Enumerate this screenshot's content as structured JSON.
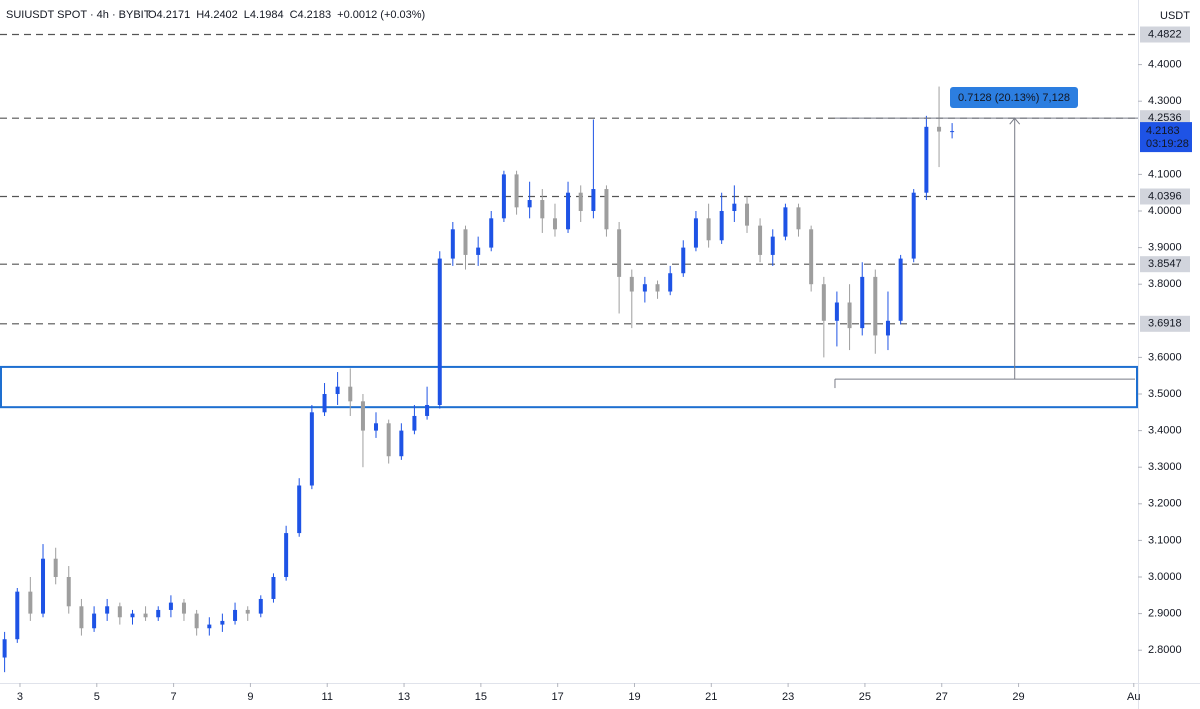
{
  "chart_data": {
    "type": "candlestick",
    "header": {
      "symbol": "SUIUSDT SPOT · 4h · BYBIT",
      "ohlc": [
        "O4.2171",
        "H4.2402",
        "L4.1984",
        "C4.2183",
        "+0.0012 (+0.03%)"
      ]
    },
    "currency": "USDT",
    "up_color": "#1e53e5",
    "down_color": "#9e9e9e",
    "grid": false,
    "x": [
      2.6,
      2.93,
      3.27,
      3.6,
      3.93,
      4.27,
      4.6,
      4.93,
      5.27,
      5.6,
      5.93,
      6.27,
      6.6,
      6.93,
      7.27,
      7.6,
      7.93,
      8.27,
      8.6,
      8.93,
      9.27,
      9.6,
      9.93,
      10.27,
      10.6,
      10.93,
      11.27,
      11.6,
      11.93,
      12.27,
      12.6,
      12.93,
      13.27,
      13.6,
      13.93,
      14.27,
      14.6,
      14.93,
      15.27,
      15.6,
      15.93,
      16.27,
      16.6,
      16.93,
      17.27,
      17.6,
      17.93,
      18.27,
      18.6,
      18.93,
      19.27,
      19.6,
      19.93,
      20.27,
      20.6,
      20.93,
      21.27,
      21.6,
      21.93,
      22.27,
      22.6,
      22.93,
      23.27,
      23.6,
      23.93,
      24.27,
      24.6,
      24.93,
      25.27,
      25.6,
      25.93,
      26.27,
      26.6,
      26.93,
      27.27
    ],
    "open": [
      2.78,
      2.83,
      2.96,
      2.9,
      3.05,
      3.0,
      2.92,
      2.86,
      2.9,
      2.92,
      2.89,
      2.9,
      2.89,
      2.91,
      2.93,
      2.9,
      2.86,
      2.87,
      2.88,
      2.91,
      2.9,
      2.94,
      3.0,
      3.12,
      3.25,
      3.45,
      3.5,
      3.52,
      3.48,
      3.4,
      3.42,
      3.33,
      3.4,
      3.44,
      3.47,
      3.87,
      3.95,
      3.88,
      3.9,
      3.98,
      4.1,
      4.01,
      4.03,
      3.98,
      3.95,
      4.05,
      4.0,
      4.06,
      3.95,
      3.82,
      3.78,
      3.8,
      3.78,
      3.83,
      3.9,
      3.98,
      3.92,
      4.0,
      4.02,
      3.96,
      3.88,
      3.93,
      4.01,
      3.95,
      3.8,
      3.7,
      3.75,
      3.68,
      3.82,
      3.66,
      3.7,
      3.87,
      4.05,
      4.23,
      4.2171
    ],
    "high": [
      2.85,
      2.97,
      3.0,
      3.09,
      3.08,
      3.03,
      2.94,
      2.92,
      2.94,
      2.93,
      2.91,
      2.92,
      2.92,
      2.95,
      2.94,
      2.91,
      2.89,
      2.9,
      2.93,
      2.92,
      2.95,
      3.01,
      3.14,
      3.27,
      3.47,
      3.53,
      3.56,
      3.57,
      3.5,
      3.45,
      3.43,
      3.42,
      3.47,
      3.52,
      3.89,
      3.97,
      3.96,
      3.93,
      4.0,
      4.11,
      4.11,
      4.08,
      4.06,
      4.02,
      4.08,
      4.07,
      4.25,
      4.07,
      3.97,
      3.84,
      3.82,
      3.81,
      3.85,
      3.92,
      4.0,
      4.02,
      4.05,
      4.07,
      4.04,
      3.98,
      3.95,
      4.02,
      4.02,
      3.96,
      3.82,
      3.78,
      3.8,
      3.86,
      3.84,
      3.78,
      3.88,
      4.06,
      4.26,
      4.34,
      4.2402
    ],
    "low": [
      2.74,
      2.82,
      2.88,
      2.89,
      2.98,
      2.9,
      2.84,
      2.85,
      2.88,
      2.87,
      2.87,
      2.88,
      2.88,
      2.89,
      2.88,
      2.84,
      2.84,
      2.85,
      2.87,
      2.88,
      2.89,
      2.93,
      2.99,
      3.11,
      3.24,
      3.44,
      3.47,
      3.44,
      3.3,
      3.38,
      3.31,
      3.32,
      3.39,
      3.43,
      3.46,
      3.85,
      3.84,
      3.85,
      3.89,
      3.97,
      3.99,
      3.98,
      3.94,
      3.93,
      3.94,
      3.97,
      3.98,
      3.93,
      3.72,
      3.68,
      3.75,
      3.76,
      3.77,
      3.82,
      3.89,
      3.9,
      3.91,
      3.97,
      3.94,
      3.86,
      3.85,
      3.92,
      3.93,
      3.78,
      3.6,
      3.63,
      3.62,
      3.66,
      3.61,
      3.62,
      3.69,
      3.86,
      4.03,
      4.12,
      4.1984
    ],
    "close": [
      2.83,
      2.96,
      2.9,
      3.05,
      3.0,
      2.92,
      2.86,
      2.9,
      2.92,
      2.89,
      2.9,
      2.89,
      2.91,
      2.93,
      2.9,
      2.86,
      2.87,
      2.88,
      2.91,
      2.9,
      2.94,
      3.0,
      3.12,
      3.25,
      3.45,
      3.5,
      3.52,
      3.48,
      3.4,
      3.42,
      3.33,
      3.4,
      3.44,
      3.47,
      3.87,
      3.95,
      3.88,
      3.9,
      3.98,
      4.1,
      4.01,
      4.03,
      3.98,
      3.95,
      4.05,
      4.0,
      4.06,
      3.95,
      3.82,
      3.78,
      3.8,
      3.78,
      3.83,
      3.9,
      3.98,
      3.92,
      4.0,
      4.02,
      3.96,
      3.88,
      3.93,
      4.01,
      3.95,
      3.8,
      3.7,
      3.75,
      3.68,
      3.82,
      3.66,
      3.7,
      3.87,
      4.05,
      4.23,
      4.2171,
      4.2183
    ],
    "xlim": [
      2.48,
      32.11
    ],
    "xticks": [
      3,
      5,
      7,
      9,
      11,
      13,
      15,
      17,
      19,
      21,
      23,
      25,
      27,
      29,
      {
        "value": 32,
        "label": "Au"
      }
    ],
    "ylim": [
      2.7104,
      4.5765
    ],
    "yticks": [
      {
        "value": 2.8,
        "label": "2.8000"
      },
      {
        "value": 2.9,
        "label": "2.9000"
      },
      {
        "value": 3.0,
        "label": "3.0000"
      },
      {
        "value": 3.1,
        "label": "3.1000"
      },
      {
        "value": 3.2,
        "label": "3.2000"
      },
      {
        "value": 3.3,
        "label": "3.3000"
      },
      {
        "value": 3.4,
        "label": "3.4000"
      },
      {
        "value": 3.5,
        "label": "3.5000"
      },
      {
        "value": 3.6,
        "label": "3.6000"
      },
      {
        "value": 3.8,
        "label": "3.8000"
      },
      {
        "value": 3.9,
        "label": "3.9000"
      },
      {
        "value": 4.0,
        "label": "4.0000"
      },
      {
        "value": 4.1,
        "label": "4.1000"
      },
      {
        "value": 4.3,
        "label": "4.3000"
      },
      {
        "value": 4.4,
        "label": "4.4000"
      }
    ],
    "levels": [
      4.4822,
      4.2536,
      4.0396,
      3.8547,
      3.6918
    ],
    "last_price": 4.2183,
    "countdown": "03:19:28",
    "zone": {
      "low": 3.464,
      "high": 3.574,
      "x_start": 2.48
    },
    "measure": {
      "label": "0.7128 (20.13%) 7,128",
      "from": 3.5408,
      "to": 4.2536,
      "x_start": 24.22,
      "x_end": 28.9
    }
  }
}
